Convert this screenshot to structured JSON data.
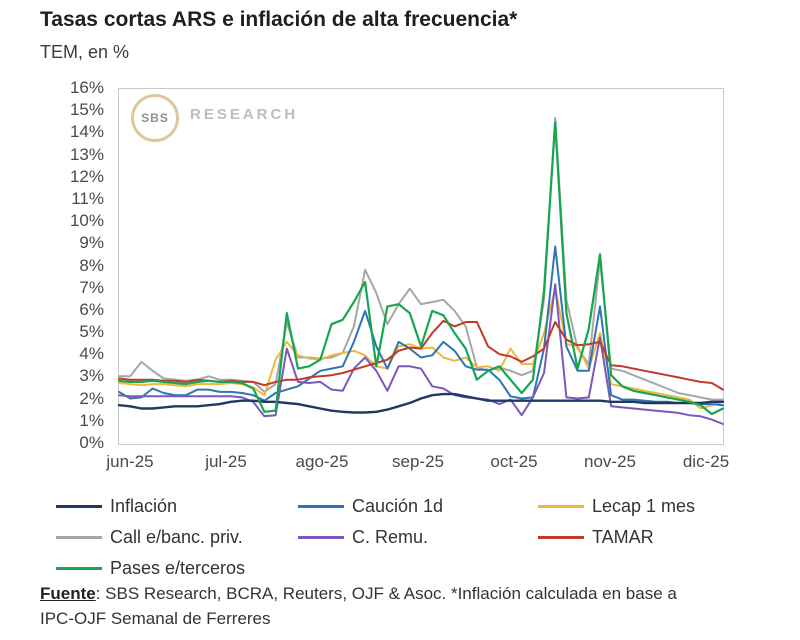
{
  "header": {
    "title": "Tasas cortas ARS e inflación de alta frecuencia*",
    "subtitle": "TEM, en %"
  },
  "watermark": {
    "circle_text": "SBS",
    "text": "RESEARCH"
  },
  "chart_data": {
    "type": "line",
    "title": "Tasas cortas ARS e inflación de alta frecuencia*",
    "ylabel": "TEM, en %",
    "y_min": 0,
    "y_max": 16,
    "grid": false,
    "legend_position": "bottom",
    "y_tick_labels": [
      "16%",
      "15%",
      "14%",
      "13%",
      "12%",
      "11%",
      "10%",
      "9%",
      "8%",
      "7%",
      "6%",
      "5%",
      "4%",
      "3%",
      "2%",
      "1%",
      "0%"
    ],
    "x_tick_labels": [
      "jun-25",
      "jul-25",
      "ago-25",
      "sep-25",
      "oct-25",
      "nov-25",
      "dic-25"
    ],
    "series": [
      {
        "id": "inflacion",
        "name": "Inflación",
        "color": "#1f3864",
        "width": 2.4,
        "z": 6,
        "values": [
          1.75,
          1.7,
          1.6,
          1.6,
          1.65,
          1.7,
          1.7,
          1.7,
          1.75,
          1.8,
          1.9,
          1.95,
          1.95,
          1.9,
          1.9,
          1.85,
          1.8,
          1.7,
          1.6,
          1.5,
          1.45,
          1.42,
          1.42,
          1.45,
          1.55,
          1.7,
          1.85,
          2.05,
          2.2,
          2.25,
          2.25,
          2.15,
          2.05,
          1.95,
          1.95,
          1.95,
          1.95,
          1.95,
          1.95,
          1.95,
          1.95,
          1.95,
          1.95,
          1.95,
          1.9,
          1.9,
          1.9,
          1.85,
          1.85,
          1.85,
          1.85,
          1.85,
          1.85,
          1.9,
          1.9
        ]
      },
      {
        "id": "caucion-1d",
        "name": "Caución 1d",
        "color": "#2e75b6",
        "width": 2,
        "z": 3,
        "values": [
          2.35,
          2.05,
          2.1,
          2.5,
          2.3,
          2.2,
          2.2,
          2.45,
          2.45,
          2.35,
          2.35,
          2.3,
          2.2,
          1.95,
          2.3,
          2.45,
          2.6,
          2.95,
          3.3,
          3.4,
          3.5,
          4.6,
          6.0,
          4.4,
          3.4,
          4.6,
          4.3,
          3.9,
          4.0,
          4.6,
          4.2,
          3.5,
          3.35,
          3.35,
          2.9,
          2.15,
          2.05,
          2.1,
          4.3,
          8.9,
          4.4,
          3.3,
          3.3,
          6.2,
          2.2,
          2.0,
          2.0,
          1.95,
          1.9,
          1.9,
          1.85,
          1.85,
          1.8,
          1.8,
          1.75
        ]
      },
      {
        "id": "lecap-1-mes",
        "name": "Lecap 1 mes",
        "color": "#efb83c",
        "width": 2,
        "z": 2,
        "values": [
          2.75,
          2.7,
          2.65,
          2.7,
          2.7,
          2.65,
          2.6,
          2.7,
          2.7,
          2.7,
          2.75,
          2.7,
          2.55,
          2.2,
          3.8,
          4.6,
          4.0,
          3.85,
          3.8,
          4.0,
          4.1,
          4.2,
          4.0,
          3.5,
          3.4,
          4.4,
          4.5,
          4.3,
          4.35,
          3.9,
          3.75,
          3.9,
          3.45,
          3.5,
          3.3,
          4.3,
          3.6,
          3.6,
          5.0,
          7.0,
          4.5,
          4.4,
          3.4,
          5.0,
          2.7,
          2.6,
          2.5,
          2.4,
          2.3,
          2.2,
          2.1,
          2.0,
          1.6,
          1.75,
          1.9
        ]
      },
      {
        "id": "call-banc-priv",
        "name": "Call e/banc. priv.",
        "color": "#a6a6a6",
        "width": 2,
        "z": 1,
        "values": [
          3.05,
          3.05,
          3.7,
          3.3,
          2.95,
          2.9,
          2.85,
          2.9,
          3.05,
          2.9,
          2.9,
          2.85,
          2.8,
          2.35,
          2.7,
          5.5,
          3.9,
          3.9,
          3.85,
          3.9,
          4.1,
          5.3,
          7.85,
          6.8,
          5.4,
          6.3,
          7.0,
          6.3,
          6.4,
          6.5,
          6.0,
          5.3,
          3.45,
          3.3,
          3.45,
          3.3,
          3.1,
          3.3,
          6.5,
          14.7,
          6.5,
          4.3,
          3.6,
          8.3,
          3.4,
          3.3,
          3.1,
          2.9,
          2.7,
          2.5,
          2.3,
          2.2,
          2.1,
          2.0,
          2.0
        ]
      },
      {
        "id": "c-remu",
        "name": "C. Remu.",
        "color": "#7d57bb",
        "width": 2,
        "z": 4,
        "values": [
          2.2,
          2.15,
          2.15,
          2.15,
          2.15,
          2.15,
          2.15,
          2.15,
          2.15,
          2.15,
          2.15,
          2.1,
          1.9,
          1.25,
          1.3,
          4.3,
          2.8,
          2.75,
          2.8,
          2.45,
          2.4,
          3.4,
          3.9,
          3.3,
          2.4,
          3.5,
          3.5,
          3.4,
          2.6,
          2.5,
          2.2,
          2.1,
          2.05,
          2.0,
          1.8,
          2.0,
          1.3,
          2.1,
          3.2,
          7.2,
          2.1,
          2.05,
          2.1,
          4.8,
          1.7,
          1.65,
          1.6,
          1.55,
          1.5,
          1.45,
          1.4,
          1.3,
          1.25,
          1.1,
          0.9
        ]
      },
      {
        "id": "tamar",
        "name": "TAMAR",
        "color": "#c0392b",
        "width": 2,
        "z": 5,
        "values": [
          2.95,
          2.9,
          2.9,
          2.9,
          2.85,
          2.85,
          2.8,
          2.9,
          2.85,
          2.8,
          2.85,
          2.8,
          2.8,
          2.65,
          2.8,
          2.9,
          2.9,
          3.0,
          3.05,
          3.1,
          3.2,
          3.35,
          3.5,
          3.65,
          3.8,
          4.2,
          4.35,
          4.3,
          5.0,
          5.55,
          5.3,
          5.5,
          5.5,
          4.4,
          4.05,
          3.95,
          3.7,
          3.95,
          4.3,
          5.5,
          4.7,
          4.45,
          4.5,
          4.6,
          3.55,
          3.5,
          3.4,
          3.3,
          3.2,
          3.1,
          3.0,
          2.9,
          2.8,
          2.75,
          2.45
        ]
      },
      {
        "id": "pases-terceros",
        "name": "Pases e/terceros",
        "color": "#16a650",
        "width": 2.2,
        "z": 7,
        "values": [
          2.85,
          2.8,
          2.8,
          2.85,
          2.8,
          2.75,
          2.7,
          2.8,
          2.85,
          2.8,
          2.8,
          2.75,
          2.5,
          1.45,
          1.5,
          5.9,
          3.4,
          3.5,
          3.8,
          5.4,
          5.6,
          6.4,
          7.3,
          3.5,
          6.2,
          6.3,
          5.9,
          4.4,
          6.0,
          5.8,
          5.0,
          4.3,
          2.9,
          3.3,
          3.5,
          2.9,
          2.3,
          2.9,
          6.9,
          14.5,
          5.9,
          3.4,
          5.2,
          8.55,
          3.1,
          2.6,
          2.4,
          2.3,
          2.2,
          2.1,
          2.0,
          1.9,
          1.75,
          1.35,
          1.6
        ]
      }
    ]
  },
  "footer": {
    "source_label": "Fuente",
    "line1": ": SBS Research, BCRA, Reuters, OJF & Asoc. *Inflación calculada en base a",
    "line2": "IPC-OJF Semanal de Ferreres"
  }
}
